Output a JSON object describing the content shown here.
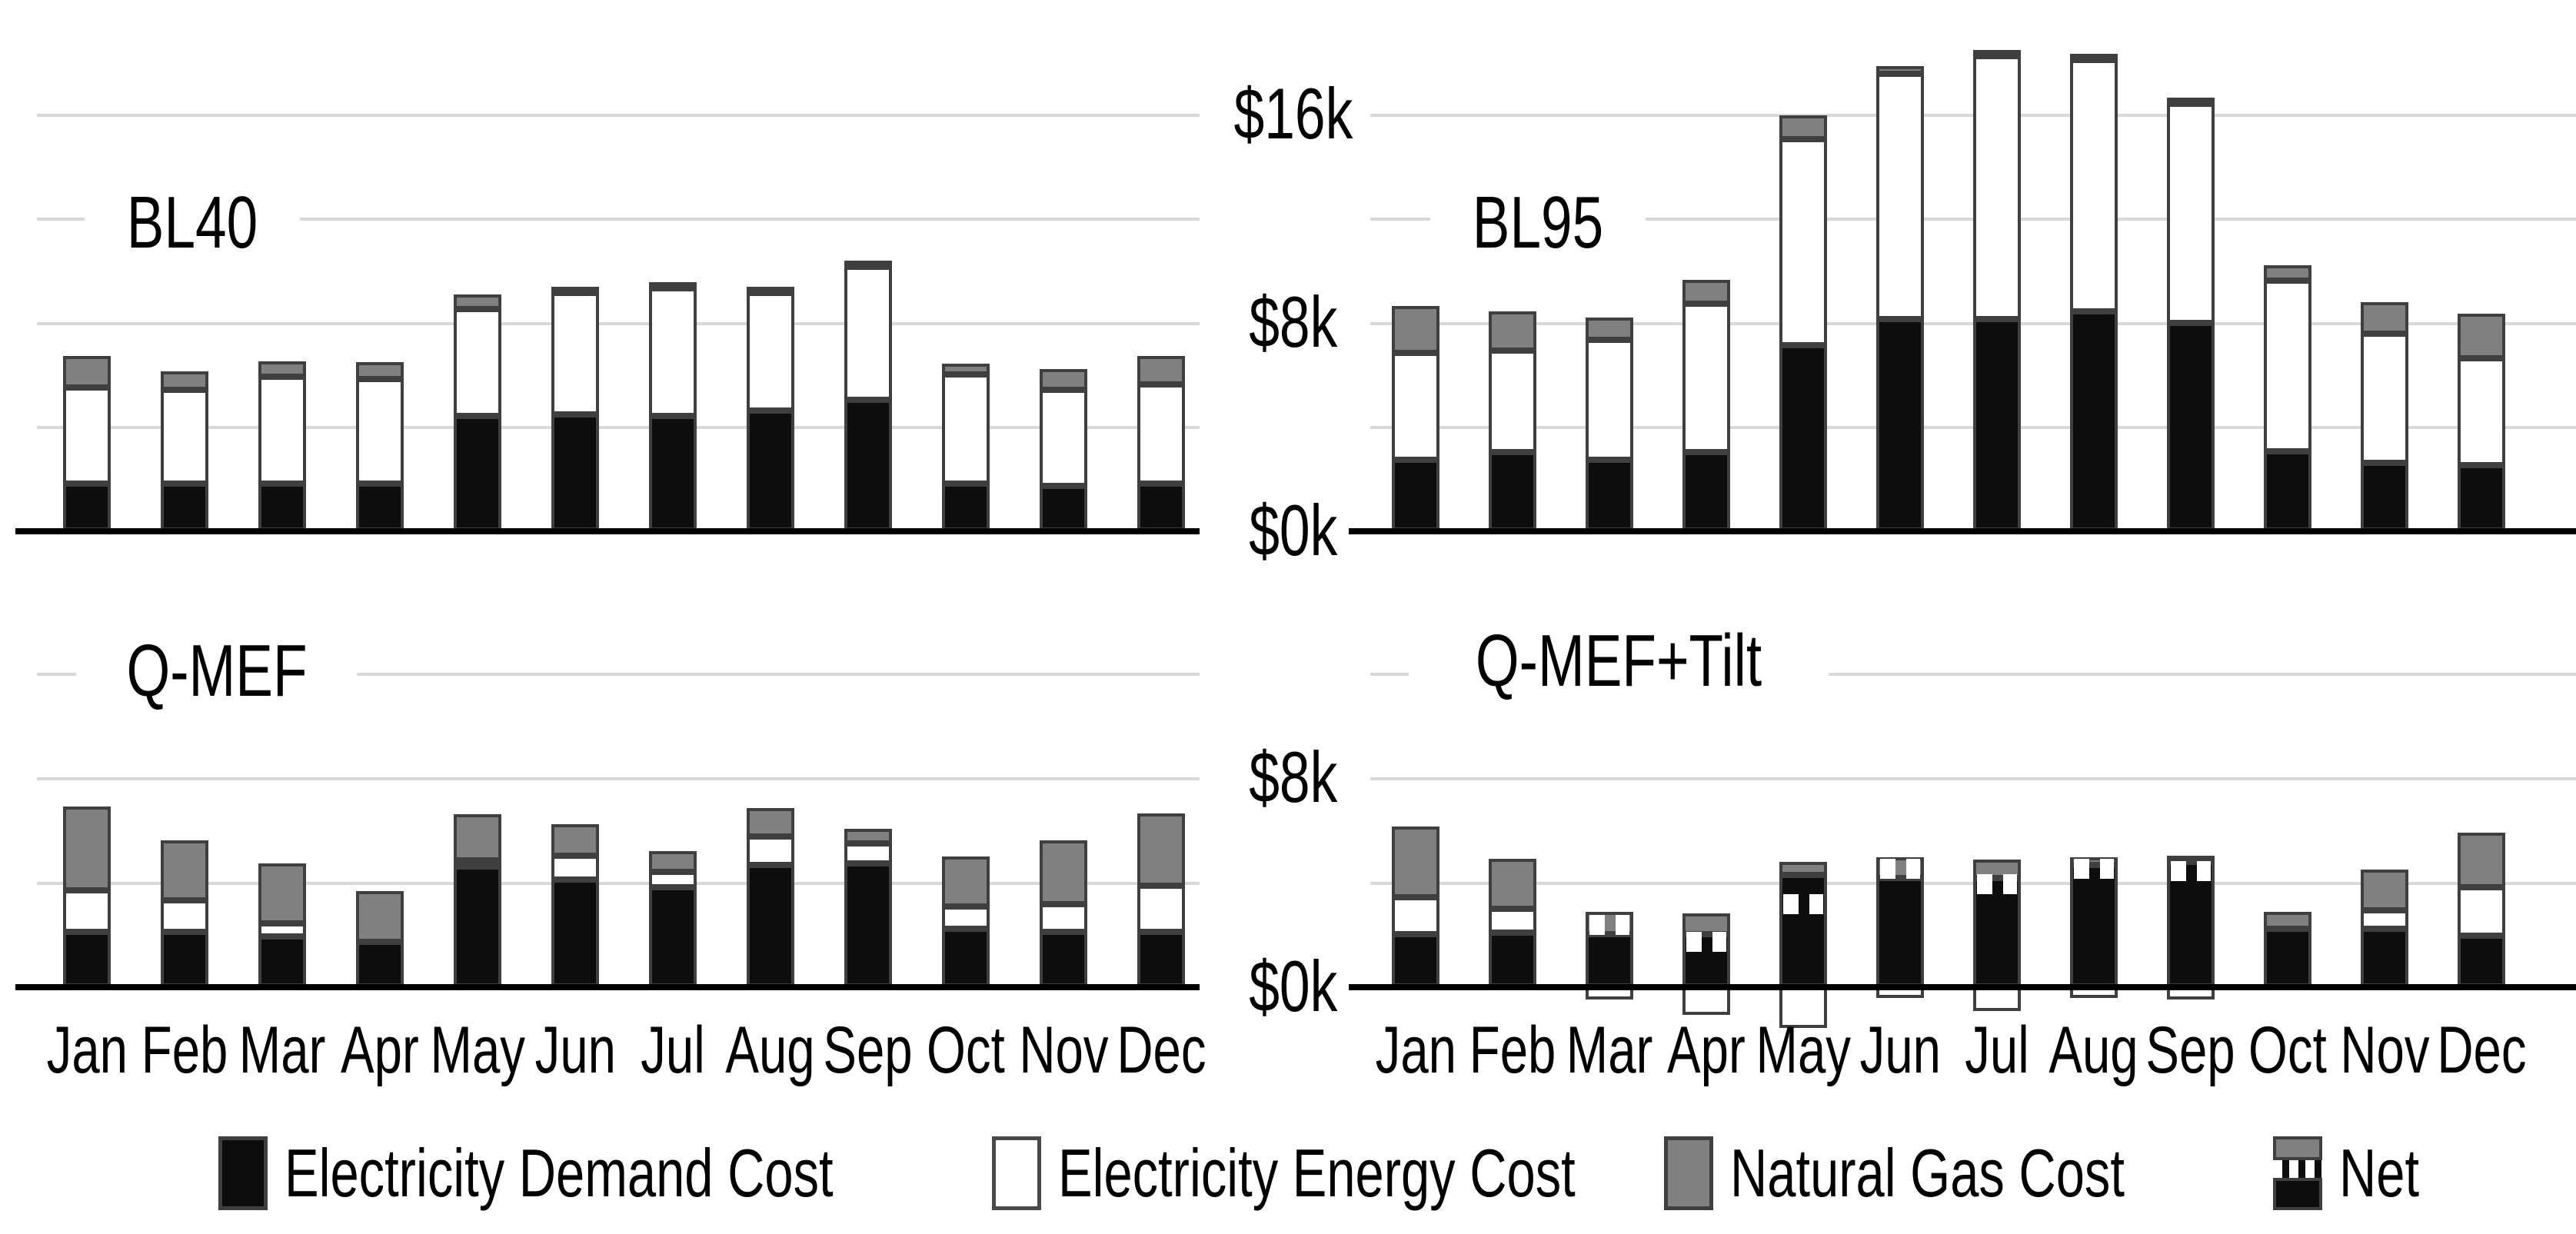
{
  "figure_title": "",
  "months": [
    "Jan",
    "Feb",
    "Mar",
    "Apr",
    "May",
    "Jun",
    "Jul",
    "Aug",
    "Sep",
    "Oct",
    "Nov",
    "Dec"
  ],
  "colors": {
    "demand": "#0d0d0d",
    "energy": "#ffffff",
    "gas": "#808080",
    "segment_border": "#3f3f3f",
    "gridline": "#d9d9d9",
    "axis": "#000000",
    "text": "#000000",
    "background": "#ffffff"
  },
  "y_axis": {
    "units": "$ thousands",
    "top_row_ticks": [
      {
        "label": "$16k",
        "value": 16
      },
      {
        "label": "$8k",
        "value": 8
      },
      {
        "label": "$0k",
        "value": 0
      }
    ],
    "bottom_row_ticks": [
      {
        "label": "$8k",
        "value": 8
      },
      {
        "label": "$0k",
        "value": 0
      }
    ]
  },
  "legend": {
    "items": [
      {
        "label": "Electricity Demand Cost",
        "swatch": "demand"
      },
      {
        "label": "Electricity Energy Cost",
        "swatch": "energy"
      },
      {
        "label": "Natural Gas Cost",
        "swatch": "gas"
      },
      {
        "label": "Net",
        "swatch": "net"
      }
    ]
  },
  "chart_data": [
    {
      "id": "bl40",
      "type": "bar",
      "stacked": true,
      "title": "BL40",
      "panel": "top-left",
      "units_k": "$k",
      "ylim_k": [
        0,
        20.3
      ],
      "gridlines_k": [
        4,
        8,
        12,
        16
      ],
      "show_month_labels": false,
      "series": [
        {
          "name": "Electricity Demand Cost",
          "key": "demand",
          "values": [
            1.8,
            1.8,
            1.8,
            1.8,
            4.4,
            4.45,
            4.4,
            4.6,
            5.0,
            1.8,
            1.7,
            1.8
          ]
        },
        {
          "name": "Electricity Energy Cost",
          "key": "energy",
          "values": [
            3.7,
            3.6,
            4.1,
            4.0,
            4.1,
            4.65,
            4.9,
            4.5,
            5.1,
            4.2,
            3.7,
            3.8
          ]
        },
        {
          "name": "Natural Gas Cost",
          "key": "gas",
          "values": [
            1.2,
            0.7,
            0.6,
            0.65,
            0.55,
            0.2,
            0.1,
            0.1,
            0.1,
            0.4,
            0.8,
            1.1
          ]
        }
      ]
    },
    {
      "id": "bl95",
      "type": "bar",
      "stacked": true,
      "title": "BL95",
      "panel": "top-right",
      "units_k": "$k",
      "ylim_k": [
        0,
        20.3
      ],
      "gridlines_k": [
        4,
        8,
        12,
        16
      ],
      "show_month_labels": false,
      "series": [
        {
          "name": "Electricity Demand Cost",
          "key": "demand",
          "values": [
            2.7,
            3.0,
            2.7,
            3.0,
            7.1,
            8.1,
            8.1,
            8.4,
            7.95,
            3.05,
            2.6,
            2.5
          ]
        },
        {
          "name": "Electricity Energy Cost",
          "key": "energy",
          "values": [
            4.1,
            3.9,
            4.6,
            5.7,
            7.9,
            9.4,
            10.1,
            9.65,
            8.4,
            6.55,
            4.95,
            4.1
          ]
        },
        {
          "name": "Natural Gas Cost",
          "key": "gas",
          "values": [
            1.8,
            1.5,
            0.85,
            0.9,
            0.9,
            0.3,
            0.2,
            0.15,
            0.15,
            0.6,
            1.2,
            1.7
          ]
        }
      ]
    },
    {
      "id": "qmef",
      "type": "bar",
      "stacked": true,
      "title": "Q-MEF",
      "panel": "bottom-left",
      "units_k": "$k",
      "ylim_k": [
        0,
        15.4
      ],
      "gridlines_k": [
        4,
        8,
        12
      ],
      "show_month_labels": true,
      "series": [
        {
          "name": "Electricity Demand Cost",
          "key": "demand",
          "values": [
            2.1,
            2.1,
            1.9,
            1.7,
            4.6,
            4.1,
            3.8,
            4.65,
            4.7,
            2.2,
            2.1,
            2.1
          ]
        },
        {
          "name": "Electricity Energy Cost",
          "key": "energy",
          "values": [
            1.6,
            1.2,
            0.5,
            0.0,
            0.15,
            0.9,
            0.6,
            1.1,
            0.75,
            0.85,
            1.05,
            1.75
          ]
        },
        {
          "name": "Natural Gas Cost",
          "key": "gas",
          "values": [
            3.2,
            2.3,
            2.3,
            1.95,
            1.75,
            1.2,
            0.8,
            1.1,
            0.55,
            1.9,
            2.45,
            2.75
          ]
        }
      ]
    },
    {
      "id": "qmef_tilt",
      "type": "bar",
      "stacked": true,
      "title": "Q-MEF+Tilt",
      "panel": "bottom-right",
      "units_k": "$k",
      "ylim_k": [
        -2.5,
        15.4
      ],
      "gridlines_k": [
        4,
        8,
        12
      ],
      "show_month_labels": true,
      "series": [
        {
          "name": "Electricity Demand Cost",
          "key": "demand",
          "values": [
            2.0,
            2.05,
            2.0,
            2.0,
            4.25,
            4.15,
            4.15,
            4.65,
            4.75,
            2.2,
            2.2,
            1.95
          ]
        },
        {
          "name": "Electricity Energy Cost",
          "key": "energy",
          "values": [
            1.4,
            0.9,
            -0.5,
            -1.1,
            -1.6,
            -0.45,
            -0.95,
            -0.45,
            -0.5,
            0.0,
            0.7,
            1.85
          ]
        },
        {
          "name": "Natural Gas Cost",
          "key": "gas",
          "values": [
            2.7,
            1.9,
            0.85,
            0.8,
            0.5,
            0.8,
            0.7,
            0.3,
            0.15,
            0.65,
            1.55,
            2.1
          ]
        }
      ],
      "net_values": [
        null,
        null,
        2.35,
        1.7,
        3.15,
        4.5,
        3.9,
        4.5,
        4.4,
        null,
        null,
        null
      ]
    }
  ]
}
